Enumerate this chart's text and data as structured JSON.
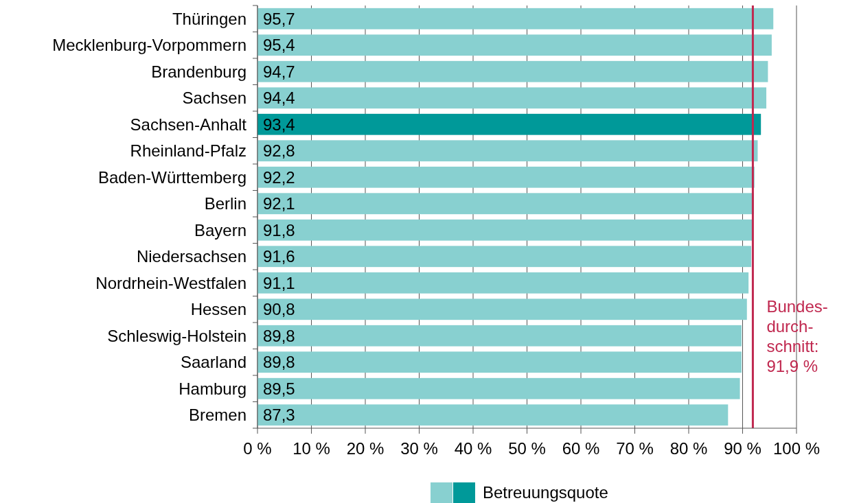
{
  "chart_data": {
    "type": "bar",
    "orientation": "horizontal",
    "categories": [
      "Thüringen",
      "Mecklenburg-Vorpommern",
      "Brandenburg",
      "Sachsen",
      "Sachsen-Anhalt",
      "Rheinland-Pfalz",
      "Baden-Württemberg",
      "Berlin",
      "Bayern",
      "Niedersachsen",
      "Nordrhein-Westfalen",
      "Hessen",
      "Schleswig-Holstein",
      "Saarland",
      "Hamburg",
      "Bremen"
    ],
    "series": [
      {
        "name": "Betreuungsquote",
        "values": [
          95.7,
          95.4,
          94.7,
          94.4,
          93.4,
          92.8,
          92.2,
          92.1,
          91.8,
          91.6,
          91.1,
          90.8,
          89.8,
          89.8,
          89.5,
          87.3
        ],
        "colors": [
          "#88d0d0",
          "#88d0d0",
          "#88d0d0",
          "#88d0d0",
          "#009999",
          "#88d0d0",
          "#88d0d0",
          "#88d0d0",
          "#88d0d0",
          "#88d0d0",
          "#88d0d0",
          "#88d0d0",
          "#88d0d0",
          "#88d0d0",
          "#88d0d0",
          "#88d0d0"
        ],
        "value_labels": [
          "95,7",
          "95,4",
          "94,7",
          "94,4",
          "93,4",
          "92,8",
          "92,2",
          "92,1",
          "91,8",
          "91,6",
          "91,1",
          "90,8",
          "89,8",
          "89,8",
          "89,5",
          "87,3"
        ]
      }
    ],
    "xlim": [
      0,
      100
    ],
    "xticks": [
      {
        "value": 0,
        "label": "0 %"
      },
      {
        "value": 10,
        "label": "10 %"
      },
      {
        "value": 20,
        "label": "20 %"
      },
      {
        "value": 30,
        "label": "30 %"
      },
      {
        "value": 40,
        "label": "40 %"
      },
      {
        "value": 50,
        "label": "50 %"
      },
      {
        "value": 60,
        "label": "60 %"
      },
      {
        "value": 70,
        "label": "70 %"
      },
      {
        "value": 80,
        "label": "80 %"
      },
      {
        "value": 90,
        "label": "90 %"
      },
      {
        "value": 100,
        "label": "100 %"
      }
    ],
    "grid": "x",
    "legend": "bottom",
    "ref_lines": [
      {
        "axis": "x",
        "value": 91.9,
        "label": "Bundes-\ndurch-\nschnitt:\n91,9 %",
        "color": "#c0284f"
      }
    ]
  }
}
